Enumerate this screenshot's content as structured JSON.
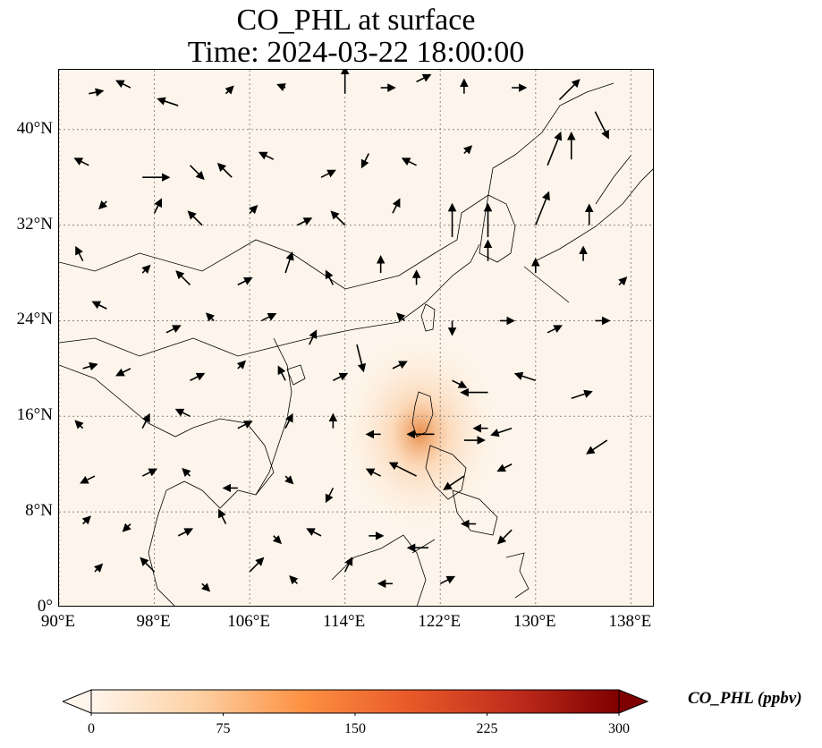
{
  "title": {
    "line1": "CO_PHL at surface",
    "line2": "Time: 2024-03-22 18:00:00"
  },
  "map": {
    "lon_range": [
      90,
      140
    ],
    "lat_range": [
      0,
      45
    ],
    "lon_ticks": [
      90,
      98,
      106,
      114,
      122,
      130,
      138
    ],
    "lat_ticks": [
      0,
      8,
      16,
      24,
      32,
      40
    ],
    "lon_tick_labels": [
      "90°E",
      "98°E",
      "106°E",
      "114°E",
      "122°E",
      "130°E",
      "138°E"
    ],
    "lat_tick_labels": [
      "0°",
      "8°N",
      "16°N",
      "24°N",
      "32°N",
      "40°N"
    ],
    "gridlines": true,
    "gridline_style": "dotted",
    "background_color": "#fdf5eb",
    "plume": {
      "lon": 120.3,
      "lat": 14.6,
      "peak_ppbv": 150
    },
    "wind_vectors": [
      {
        "lon": 92.5,
        "lat": 43.0,
        "u": 1,
        "v": 0.2
      },
      {
        "lon": 96,
        "lat": 43.5,
        "u": -1,
        "v": 0.5
      },
      {
        "lon": 100,
        "lat": 42,
        "u": -1.5,
        "v": 0.5
      },
      {
        "lon": 104,
        "lat": 43,
        "u": 0.5,
        "v": 0.5
      },
      {
        "lon": 109,
        "lat": 43.5,
        "u": -0.5,
        "v": 0.2
      },
      {
        "lon": 114,
        "lat": 43,
        "u": 0,
        "v": 2
      },
      {
        "lon": 117,
        "lat": 43.5,
        "u": 1,
        "v": 0
      },
      {
        "lon": 120,
        "lat": 44,
        "u": 1,
        "v": 0.5
      },
      {
        "lon": 124,
        "lat": 43,
        "u": 0,
        "v": 1
      },
      {
        "lon": 128,
        "lat": 43.5,
        "u": 1,
        "v": 0
      },
      {
        "lon": 132,
        "lat": 42.5,
        "u": 1.5,
        "v": 1.5
      },
      {
        "lon": 135,
        "lat": 41.5,
        "u": 1,
        "v": -2
      },
      {
        "lon": 92.5,
        "lat": 37,
        "u": -1,
        "v": 0.5
      },
      {
        "lon": 97,
        "lat": 36,
        "u": 2,
        "v": 0
      },
      {
        "lon": 101,
        "lat": 37,
        "u": 1,
        "v": -1
      },
      {
        "lon": 104.5,
        "lat": 36,
        "u": -1,
        "v": 1
      },
      {
        "lon": 108,
        "lat": 37.5,
        "u": -1,
        "v": 0.5
      },
      {
        "lon": 112,
        "lat": 36,
        "u": 1,
        "v": 0.5
      },
      {
        "lon": 116,
        "lat": 38,
        "u": -0.5,
        "v": -1
      },
      {
        "lon": 120,
        "lat": 37,
        "u": -1,
        "v": 0.5
      },
      {
        "lon": 124,
        "lat": 38,
        "u": 0.5,
        "v": 0.5
      },
      {
        "lon": 131,
        "lat": 37,
        "u": 1,
        "v": 2.5
      },
      {
        "lon": 133,
        "lat": 37.5,
        "u": 0,
        "v": 2
      },
      {
        "lon": 94,
        "lat": 34,
        "u": -0.5,
        "v": -0.5
      },
      {
        "lon": 98,
        "lat": 33,
        "u": 0.5,
        "v": 1
      },
      {
        "lon": 102,
        "lat": 32,
        "u": -1,
        "v": 1
      },
      {
        "lon": 106,
        "lat": 33,
        "u": 0.5,
        "v": 0.5
      },
      {
        "lon": 110,
        "lat": 32,
        "u": 1,
        "v": 0.5
      },
      {
        "lon": 114,
        "lat": 32,
        "u": -1,
        "v": 1
      },
      {
        "lon": 118,
        "lat": 33,
        "u": 0.5,
        "v": 1
      },
      {
        "lon": 123,
        "lat": 31,
        "u": 0,
        "v": 2.5
      },
      {
        "lon": 126,
        "lat": 31,
        "u": 0,
        "v": 2.5
      },
      {
        "lon": 130,
        "lat": 32,
        "u": 1,
        "v": 2.5
      },
      {
        "lon": 134.5,
        "lat": 32,
        "u": 0,
        "v": 1.5
      },
      {
        "lon": 92,
        "lat": 29,
        "u": -0.5,
        "v": 1
      },
      {
        "lon": 97,
        "lat": 28,
        "u": 0.5,
        "v": 0.5
      },
      {
        "lon": 101,
        "lat": 27,
        "u": -1,
        "v": 1
      },
      {
        "lon": 105,
        "lat": 27,
        "u": 1,
        "v": 0.5
      },
      {
        "lon": 109,
        "lat": 28,
        "u": 0.5,
        "v": 1.5
      },
      {
        "lon": 113,
        "lat": 27,
        "u": -0.5,
        "v": 1
      },
      {
        "lon": 117,
        "lat": 28,
        "u": 0,
        "v": 1.2
      },
      {
        "lon": 120,
        "lat": 27,
        "u": 0,
        "v": 1
      },
      {
        "lon": 126,
        "lat": 29,
        "u": 0,
        "v": 1.5
      },
      {
        "lon": 130,
        "lat": 28,
        "u": 0,
        "v": 1
      },
      {
        "lon": 134,
        "lat": 29,
        "u": 0,
        "v": 1
      },
      {
        "lon": 137,
        "lat": 27,
        "u": 0.5,
        "v": 0.5
      },
      {
        "lon": 94,
        "lat": 25,
        "u": -1,
        "v": 0.5
      },
      {
        "lon": 99,
        "lat": 23,
        "u": 1,
        "v": 0.5
      },
      {
        "lon": 103,
        "lat": 24,
        "u": -0.5,
        "v": 0.5
      },
      {
        "lon": 107,
        "lat": 24,
        "u": 1,
        "v": 0.5
      },
      {
        "lon": 111,
        "lat": 22,
        "u": 0.5,
        "v": 1
      },
      {
        "lon": 115,
        "lat": 22,
        "u": 0.5,
        "v": -2
      },
      {
        "lon": 119,
        "lat": 24,
        "u": -0.5,
        "v": 0.5
      },
      {
        "lon": 123,
        "lat": 24,
        "u": 0,
        "v": -1
      },
      {
        "lon": 127,
        "lat": 24,
        "u": 1,
        "v": 0
      },
      {
        "lon": 131,
        "lat": 23,
        "u": 1,
        "v": 0.5
      },
      {
        "lon": 135,
        "lat": 24,
        "u": 1,
        "v": 0
      },
      {
        "lon": 92,
        "lat": 20,
        "u": 1,
        "v": 0.3
      },
      {
        "lon": 96,
        "lat": 20,
        "u": -1,
        "v": -0.5
      },
      {
        "lon": 101,
        "lat": 19,
        "u": 1,
        "v": 0.5
      },
      {
        "lon": 105,
        "lat": 20,
        "u": 0.5,
        "v": 0.5
      },
      {
        "lon": 109,
        "lat": 19,
        "u": -0.5,
        "v": 1
      },
      {
        "lon": 113,
        "lat": 19,
        "u": 1,
        "v": 0.5
      },
      {
        "lon": 118,
        "lat": 20,
        "u": 1,
        "v": 0.5
      },
      {
        "lon": 123,
        "lat": 19,
        "u": 1,
        "v": -0.5
      },
      {
        "lon": 126,
        "lat": 18,
        "u": -2,
        "v": 0
      },
      {
        "lon": 130,
        "lat": 19,
        "u": -1.5,
        "v": 0.5
      },
      {
        "lon": 133,
        "lat": 17.5,
        "u": 1.5,
        "v": 0.5
      },
      {
        "lon": 92,
        "lat": 15,
        "u": -0.5,
        "v": 0.5
      },
      {
        "lon": 97,
        "lat": 15,
        "u": 0.5,
        "v": 1
      },
      {
        "lon": 101,
        "lat": 16,
        "u": -1,
        "v": 0.5
      },
      {
        "lon": 105,
        "lat": 15,
        "u": 1,
        "v": 0.5
      },
      {
        "lon": 109,
        "lat": 15,
        "u": 0.5,
        "v": 1
      },
      {
        "lon": 113,
        "lat": 15,
        "u": 0,
        "v": 1
      },
      {
        "lon": 117,
        "lat": 14.5,
        "u": -1,
        "v": 0
      },
      {
        "lon": 121.5,
        "lat": 14.5,
        "u": -2,
        "v": 0
      },
      {
        "lon": 124,
        "lat": 14,
        "u": 1.5,
        "v": 0
      },
      {
        "lon": 126,
        "lat": 15,
        "u": -1,
        "v": 0
      },
      {
        "lon": 128,
        "lat": 15,
        "u": -1.5,
        "v": -0.5
      },
      {
        "lon": 136,
        "lat": 14,
        "u": -1.5,
        "v": -1
      },
      {
        "lon": 93,
        "lat": 11,
        "u": -1,
        "v": -0.5
      },
      {
        "lon": 97,
        "lat": 11,
        "u": 1,
        "v": 0.5
      },
      {
        "lon": 101,
        "lat": 11,
        "u": -0.5,
        "v": 0.5
      },
      {
        "lon": 105,
        "lat": 10,
        "u": -1,
        "v": 0
      },
      {
        "lon": 109,
        "lat": 11,
        "u": 0.5,
        "v": -0.5
      },
      {
        "lon": 113,
        "lat": 10,
        "u": -0.5,
        "v": -1
      },
      {
        "lon": 117,
        "lat": 11,
        "u": -1,
        "v": 0.5
      },
      {
        "lon": 120,
        "lat": 11,
        "u": -2,
        "v": 1
      },
      {
        "lon": 124,
        "lat": 11,
        "u": -1.5,
        "v": -1
      },
      {
        "lon": 128,
        "lat": 12,
        "u": -1,
        "v": -0.5
      },
      {
        "lon": 92,
        "lat": 7,
        "u": 0.5,
        "v": 0.5
      },
      {
        "lon": 96,
        "lat": 7,
        "u": -0.5,
        "v": -0.5
      },
      {
        "lon": 100,
        "lat": 6,
        "u": 1,
        "v": 0.5
      },
      {
        "lon": 104,
        "lat": 7,
        "u": -0.5,
        "v": 1
      },
      {
        "lon": 108,
        "lat": 6,
        "u": 0.5,
        "v": -0.5
      },
      {
        "lon": 112,
        "lat": 6,
        "u": -1,
        "v": 0.5
      },
      {
        "lon": 116,
        "lat": 6,
        "u": 1,
        "v": 0
      },
      {
        "lon": 121,
        "lat": 5,
        "u": -1.5,
        "v": 0
      },
      {
        "lon": 125,
        "lat": 7,
        "u": -1,
        "v": 0
      },
      {
        "lon": 128,
        "lat": 6.5,
        "u": -1,
        "v": -1
      },
      {
        "lon": 93,
        "lat": 3,
        "u": 0.5,
        "v": 0.5
      },
      {
        "lon": 98,
        "lat": 3,
        "u": -1,
        "v": 1
      },
      {
        "lon": 102,
        "lat": 2,
        "u": 0.5,
        "v": -0.5
      },
      {
        "lon": 106,
        "lat": 3,
        "u": 1,
        "v": 1
      },
      {
        "lon": 110,
        "lat": 2,
        "u": -0.5,
        "v": 0.5
      },
      {
        "lon": 114,
        "lat": 3,
        "u": 0.5,
        "v": 1
      },
      {
        "lon": 118,
        "lat": 2,
        "u": -1,
        "v": 0
      },
      {
        "lon": 122,
        "lat": 2,
        "u": 1,
        "v": 0.5
      }
    ]
  },
  "colorbar": {
    "label": "CO_PHL (ppbv)",
    "min": 0,
    "max": 300,
    "ticks": [
      0,
      75,
      150,
      225,
      300
    ],
    "tick_labels": [
      "0",
      "75",
      "150",
      "225",
      "300"
    ],
    "extend": "both",
    "colormap_stops": [
      "#fff5eb",
      "#fdd1a5",
      "#fd9243",
      "#e95a29",
      "#c02d1c",
      "#7f0000"
    ]
  }
}
